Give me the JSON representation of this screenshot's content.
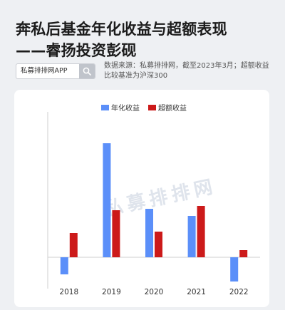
{
  "header": {
    "title_line1": "奔私后基金年化收益与超额表现",
    "title_line2": "——睿扬投资彭砚"
  },
  "search": {
    "label": "私募排排网APP",
    "icon": "search-icon"
  },
  "source_note": "数据来源：私募排排网，截至2023年3月；超额收益比较基准为沪深300",
  "watermark": "私募排排网",
  "colors": {
    "series_1": "#5b8ff9",
    "series_2": "#cc1a1a"
  },
  "chart_data": {
    "type": "bar",
    "categories": [
      "2018",
      "2019",
      "2020",
      "2021",
      "2022"
    ],
    "series": [
      {
        "name": "年化收益",
        "values": [
          -12,
          80,
          34,
          29,
          -17
        ]
      },
      {
        "name": "超额收益",
        "values": [
          17,
          33,
          18,
          36,
          5
        ]
      }
    ],
    "ylim": [
      -20,
      100
    ],
    "legend": "top-center",
    "grid": false,
    "title": "",
    "xlabel": "",
    "ylabel": ""
  }
}
